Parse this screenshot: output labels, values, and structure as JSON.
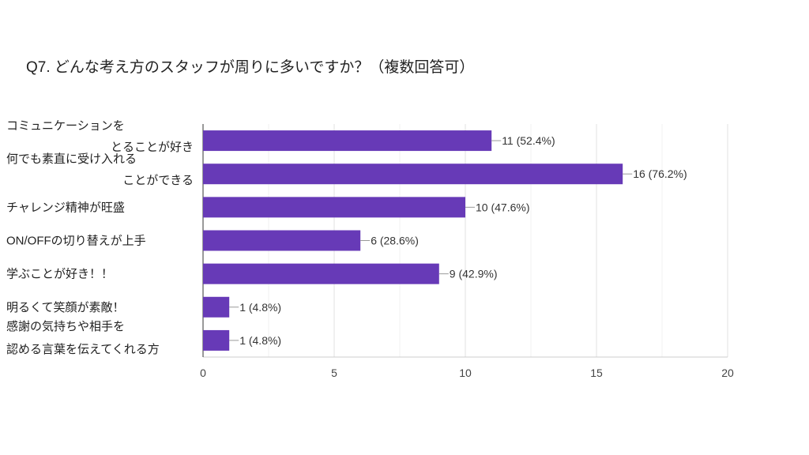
{
  "chart_data": {
    "type": "bar",
    "orientation": "horizontal",
    "title": "Q7. どんな考え方のスタッフが周りに多いですか？（複数回答可）",
    "categories": [
      [
        "コミュニケーションを",
        "とることが好き"
      ],
      [
        "何でも素直に受け入れる",
        "ことができる"
      ],
      [
        "チャレンジ精神が旺盛"
      ],
      [
        "ON/OFFの切り替えが上手"
      ],
      [
        "学ぶことが好き！！"
      ],
      [
        "明るくて笑顔が素敵！"
      ],
      [
        "感謝の気持ちや相手を",
        "認める言葉を伝えてくれる方"
      ]
    ],
    "values": [
      11,
      16,
      10,
      6,
      9,
      1,
      1
    ],
    "data_labels": [
      "11 (52.4%)",
      "16 (76.2%)",
      "10 (47.6%)",
      "6 (28.6%)",
      "9 (42.9%)",
      "1 (4.8%)",
      "1 (4.8%)"
    ],
    "xlim": [
      0,
      20
    ],
    "xticks": [
      "0",
      "5",
      "10",
      "15",
      "20"
    ],
    "grid": true,
    "bar_color": "#673ab7"
  }
}
